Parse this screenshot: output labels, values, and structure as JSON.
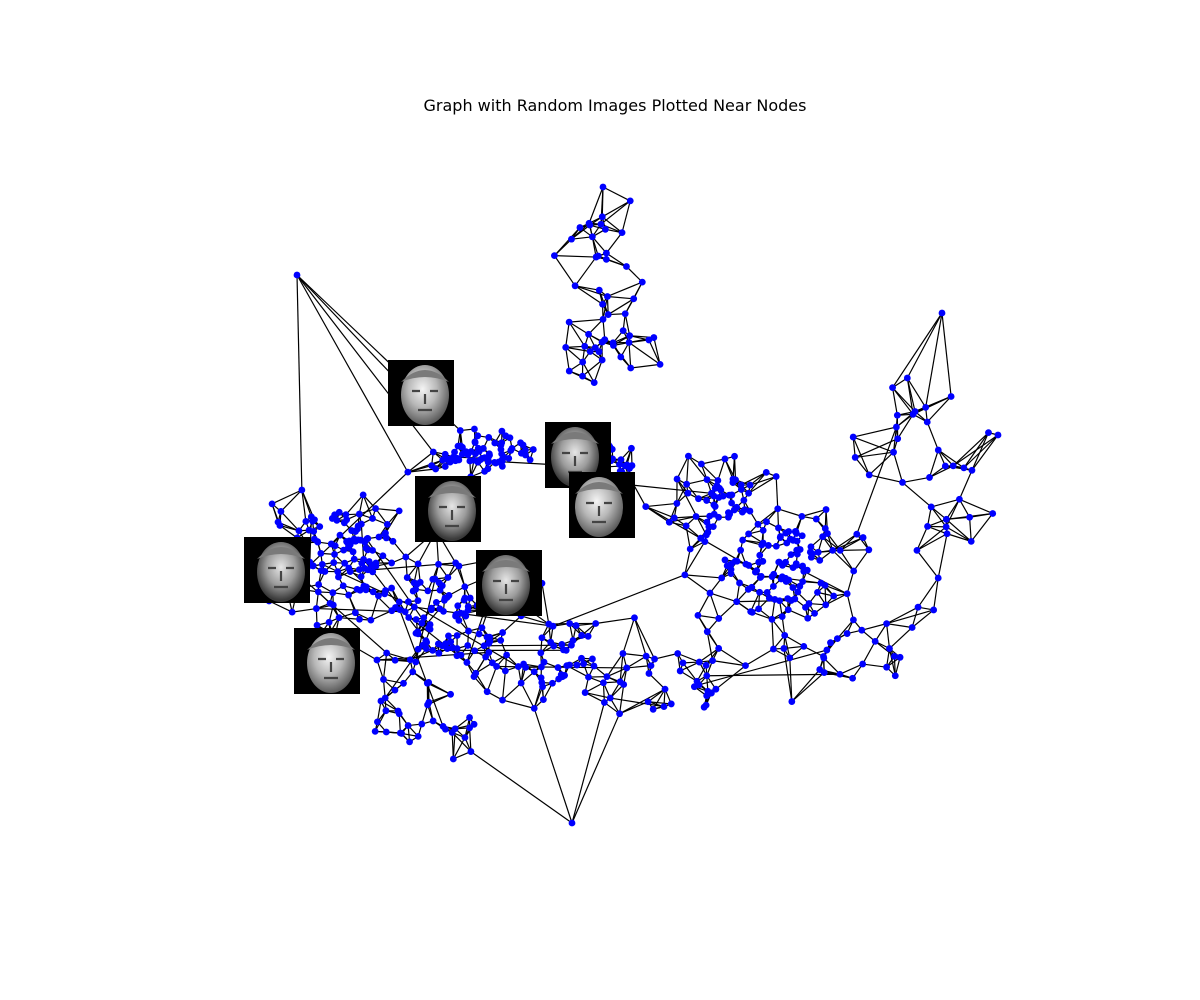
{
  "chart_data": {
    "type": "network-graph",
    "title": "Graph with Random Images Plotted Near Nodes",
    "node_color": "#0000ff",
    "edge_color": "#000000",
    "background": "#ffffff",
    "axes_visible": false,
    "image_thumbnails": {
      "count": 7,
      "style": "grayscale face on black background"
    }
  }
}
